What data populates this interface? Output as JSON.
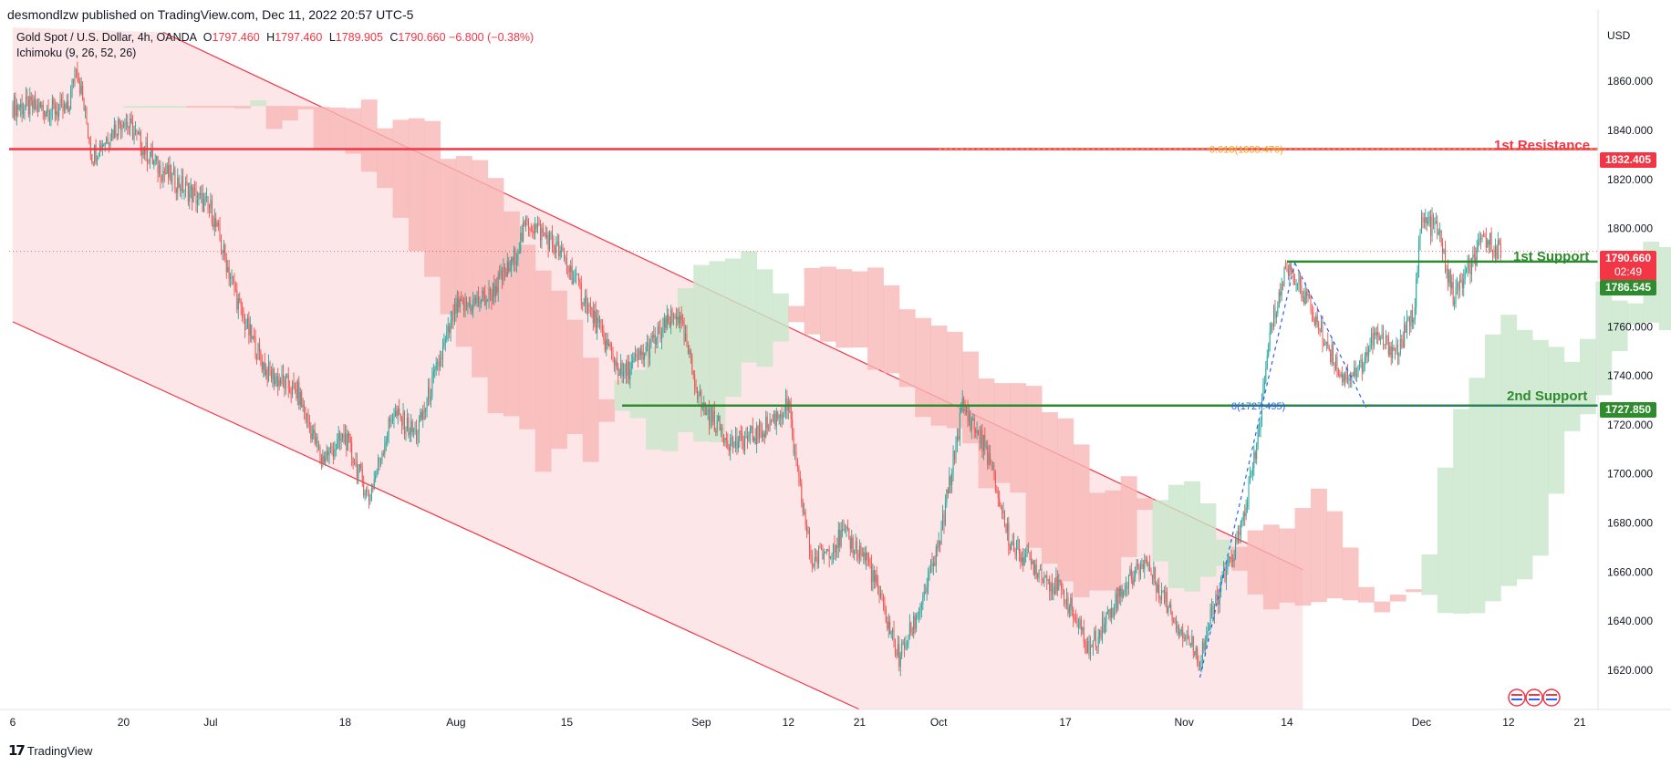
{
  "publisher": "desmondlzw published on TradingView.com, Dec 11, 2022 20:57 UTC-5",
  "legend": {
    "symbol": "Gold Spot / U.S. Dollar, 4h, OANDA",
    "o_label": "O",
    "o": "1797.460",
    "h_label": "H",
    "h": "1797.460",
    "l_label": "L",
    "l": "1789.905",
    "c_label": "C",
    "c": "1790.660",
    "change": "−6.800 (−0.38%)",
    "indicator": "Ichimoku (9, 26, 52, 26)"
  },
  "currency": "USD",
  "brand": "TradingView",
  "colors": {
    "up": "#26a69a",
    "down": "#ef5350",
    "resistance": "#f23645",
    "support": "#2e8b2e",
    "fib": "#f7a21b",
    "channel_fill": "#fde2e3",
    "cloud_bear": "#f8b7b7",
    "cloud_bull": "#c8e6c9"
  },
  "price_tags": {
    "resistance": "1832.405",
    "current_price": "1790.660",
    "countdown": "02:49",
    "support1": "1786.545",
    "support2": "1727.850"
  },
  "annotations": {
    "resistance_label": "1st Resistance",
    "support1_label": "1st Support",
    "support2_label": "2nd Support",
    "fib_top": "0.618(1833.476)",
    "fib_bottom": "0(1727.495)"
  },
  "chart_data": {
    "type": "candlestick",
    "ylim": [
      1604,
      1882
    ],
    "y_ticks": [
      "1860.000",
      "1840.000",
      "1820.000",
      "1800.000",
      "1780.000",
      "1760.000",
      "1740.000",
      "1720.000",
      "1700.000",
      "1680.000",
      "1660.000",
      "1640.000",
      "1620.000"
    ],
    "x_ticks": [
      "6",
      "20",
      "Jul",
      "18",
      "Aug",
      "15",
      "Sep",
      "12",
      "21",
      "Oct",
      "17",
      "Nov",
      "14",
      "Dec",
      "12",
      "21"
    ],
    "levels": {
      "resistance": 1832.405,
      "support1": 1786.545,
      "support2": 1727.85,
      "current": 1790.66
    },
    "close_path": [
      [
        "Jun 06",
        1850
      ],
      [
        "Jun 13",
        1848
      ],
      [
        "Jun 14",
        1868
      ],
      [
        "Jun 16",
        1830
      ],
      [
        "Jun 20",
        1845
      ],
      [
        "Jun 24",
        1826
      ],
      [
        "Jul 01",
        1808
      ],
      [
        "Jul 05",
        1764
      ],
      [
        "Jul 08",
        1742
      ],
      [
        "Jul 12",
        1733
      ],
      [
        "Jul 15",
        1706
      ],
      [
        "Jul 18",
        1715
      ],
      [
        "Jul 21",
        1690
      ],
      [
        "Jul 24",
        1725
      ],
      [
        "Jul 27",
        1716
      ],
      [
        "Aug 01",
        1767
      ],
      [
        "Aug 05",
        1772
      ],
      [
        "Aug 08",
        1785
      ],
      [
        "Aug 10",
        1803
      ],
      [
        "Aug 13",
        1795
      ],
      [
        "Aug 15",
        1786
      ],
      [
        "Aug 18",
        1766
      ],
      [
        "Aug 22",
        1740
      ],
      [
        "Aug 25",
        1750
      ],
      [
        "Aug 29",
        1766
      ],
      [
        "Sep 01",
        1728
      ],
      [
        "Sep 05",
        1712
      ],
      [
        "Sep 08",
        1716
      ],
      [
        "Sep 12",
        1728
      ],
      [
        "Sep 13",
        1702
      ],
      [
        "Sep 15",
        1664
      ],
      [
        "Sep 19",
        1675
      ],
      [
        "Sep 22",
        1665
      ],
      [
        "Sep 26",
        1625
      ],
      [
        "Sep 28",
        1640
      ],
      [
        "Oct 01",
        1670
      ],
      [
        "Oct 04",
        1728
      ],
      [
        "Oct 07",
        1710
      ],
      [
        "Oct 10",
        1672
      ],
      [
        "Oct 13",
        1663
      ],
      [
        "Oct 17",
        1650
      ],
      [
        "Oct 20",
        1628
      ],
      [
        "Oct 24",
        1652
      ],
      [
        "Oct 27",
        1665
      ],
      [
        "Oct 31",
        1640
      ],
      [
        "Nov 03",
        1625
      ],
      [
        "Nov 05",
        1648
      ],
      [
        "Nov 08",
        1675
      ],
      [
        "Nov 10",
        1707
      ],
      [
        "Nov 12",
        1760
      ],
      [
        "Nov 14",
        1785
      ],
      [
        "Nov 16",
        1775
      ],
      [
        "Nov 18",
        1760
      ],
      [
        "Nov 21",
        1740
      ],
      [
        "Nov 23",
        1742
      ],
      [
        "Nov 25",
        1756
      ],
      [
        "Nov 28",
        1750
      ],
      [
        "Nov 30",
        1766
      ],
      [
        "Dec 01",
        1803
      ],
      [
        "Dec 03",
        1800
      ],
      [
        "Dec 05",
        1772
      ],
      [
        "Dec 07",
        1783
      ],
      [
        "Dec 09",
        1796
      ],
      [
        "Dec 11",
        1790.66
      ]
    ]
  }
}
